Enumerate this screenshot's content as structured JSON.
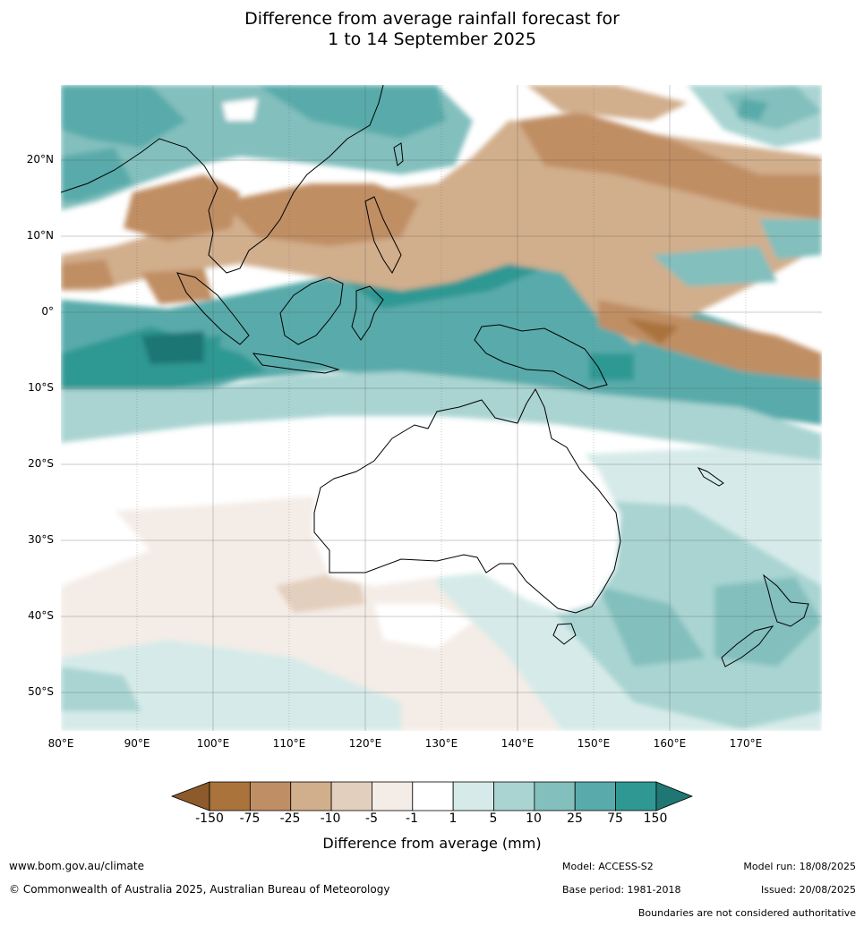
{
  "title_line1": "Difference from average rainfall forecast for",
  "title_line2": "1 to 14 September 2025",
  "lat_labels": [
    "20°N",
    "10°N",
    "0°",
    "10°S",
    "20°S",
    "30°S",
    "40°S",
    "50°S"
  ],
  "lon_labels": [
    "80°E",
    "90°E",
    "100°E",
    "110°E",
    "120°E",
    "130°E",
    "140°E",
    "150°E",
    "160°E",
    "170°E"
  ],
  "legend": {
    "title": "Difference from average (mm)",
    "ticks": [
      "-150",
      "-75",
      "-25",
      "-10",
      "-5",
      "-1",
      "1",
      "5",
      "10",
      "25",
      "75",
      "150"
    ],
    "colors": [
      "#8c5a2b",
      "#aa733c",
      "#c08e64",
      "#d1ae8c",
      "#e3cfbd",
      "#f4ece6",
      "#ffffff",
      "#d6ebe9",
      "#a9d4d2",
      "#82bfbd",
      "#58abaa",
      "#2f9893",
      "#1f7673"
    ]
  },
  "footer": {
    "url": "www.bom.gov.au/climate",
    "copyright": "© Commonwealth of Australia 2025, Australian Bureau of Meteorology",
    "model": "Model: ACCESS-S2",
    "base_period": "Base period: 1981-2018",
    "model_run": "Model run: 18/08/2025",
    "issued": "Issued: 20/08/2025",
    "disclaimer": "Boundaries are not considered authoritative"
  }
}
